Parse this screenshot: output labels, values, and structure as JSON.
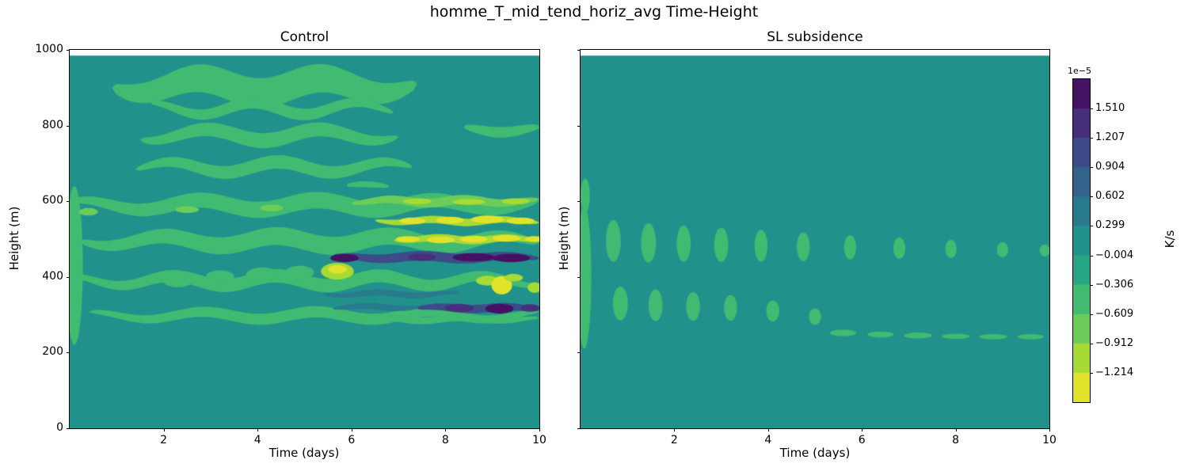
{
  "chart_data": {
    "type": "heatmap",
    "title": "homme_T_mid_tend_horiz_avg Time-Height",
    "colormap": "viridis_r",
    "colormap_colors": [
      "#fde725",
      "#addc30",
      "#5ec962",
      "#28ae80",
      "#21918c",
      "#2c728e",
      "#3b528b",
      "#472d7b",
      "#440154"
    ],
    "value_scale": "1e-5",
    "vmin": -1.517,
    "vmax": 1.813,
    "n_levels": 11,
    "layout": {
      "grid": false,
      "legend": "none",
      "colorbar_position": "right"
    },
    "colorbar": {
      "label": "K/s",
      "offset_text": "1e−5",
      "tick_labels": [
        "1.510",
        "1.207",
        "0.904",
        "0.602",
        "0.299",
        "−0.004",
        "−0.306",
        "−0.609",
        "−0.912",
        "−1.214"
      ]
    },
    "panels": [
      {
        "title": "Control",
        "xlabel": "Time (days)",
        "ylabel": "Height (m)",
        "xlim": [
          0,
          10
        ],
        "ylim": [
          0,
          1000
        ],
        "xticks": [
          "2",
          "4",
          "6",
          "8",
          "10"
        ],
        "yticks": [
          "0",
          "200",
          "400",
          "600",
          "800",
          "1000"
        ],
        "data_top": 985,
        "background_value": 0.05,
        "bands": [
          {
            "y": 905,
            "ry": 40,
            "x0": 0.9,
            "x1": 7.4,
            "amp": 20,
            "wl": 2.6,
            "ph": 1.2,
            "v": -0.45
          },
          {
            "y": 845,
            "ry": 16,
            "x0": 1.7,
            "x1": 6.9,
            "amp": 16,
            "wl": 2.2,
            "ph": 3.0,
            "v": -0.45
          },
          {
            "y": 775,
            "ry": 20,
            "x0": 1.5,
            "x1": 7.0,
            "amp": 15,
            "wl": 2.4,
            "ph": 0.2,
            "v": -0.45
          },
          {
            "y": 790,
            "ry": 14,
            "x0": 8.4,
            "x1": 10.0,
            "amp": 8,
            "wl": 2.0,
            "ph": 1.0,
            "v": -0.45
          },
          {
            "y": 690,
            "ry": 18,
            "x0": 1.4,
            "x1": 7.3,
            "amp": 14,
            "wl": 2.3,
            "ph": 2.0,
            "v": -0.45
          },
          {
            "y": 640,
            "ry": 8,
            "x0": 5.9,
            "x1": 6.8,
            "amp": 5,
            "wl": 2.0,
            "ph": 0.8,
            "v": -0.45
          },
          {
            "y": 590,
            "ry": 22,
            "x0": 0.0,
            "x1": 10.0,
            "amp": 13,
            "wl": 2.5,
            "ph": 0.9,
            "v": -0.45
          },
          {
            "y": 495,
            "ry": 24,
            "x0": 0.2,
            "x1": 10.0,
            "amp": 13,
            "wl": 2.4,
            "ph": 2.6,
            "v": -0.45
          },
          {
            "y": 390,
            "ry": 18,
            "x0": 0.0,
            "x1": 10.0,
            "amp": 13,
            "wl": 2.2,
            "ph": 1.6,
            "v": -0.45
          },
          {
            "y": 298,
            "ry": 15,
            "x0": 0.4,
            "x1": 10.0,
            "amp": 10,
            "wl": 2.4,
            "ph": 0.4,
            "v": -0.45
          },
          {
            "y": 600,
            "ry": 12,
            "x0": 6.0,
            "x1": 10.0,
            "amp": 5,
            "wl": 1.6,
            "ph": 0.0,
            "v": -0.75
          },
          {
            "y": 548,
            "ry": 10,
            "x0": 6.5,
            "x1": 10.0,
            "amp": 4,
            "wl": 1.5,
            "ph": 0.7,
            "v": -0.95
          },
          {
            "y": 500,
            "ry": 10,
            "x0": 6.9,
            "x1": 10.0,
            "amp": 4,
            "wl": 1.5,
            "ph": 0.2,
            "v": -0.95
          },
          {
            "y": 452,
            "ry": 13,
            "x0": 5.6,
            "x1": 10.0,
            "amp": 4,
            "wl": 1.8,
            "ph": 0.5,
            "v": 1.15
          },
          {
            "y": 355,
            "ry": 8,
            "x0": 5.4,
            "x1": 8.3,
            "amp": 4,
            "wl": 1.6,
            "ph": 0.9,
            "v": 0.45
          },
          {
            "y": 320,
            "ry": 8,
            "x0": 5.6,
            "x1": 7.5,
            "amp": 3,
            "wl": 1.5,
            "ph": 0.3,
            "v": 0.6
          },
          {
            "y": 318,
            "ry": 11,
            "x0": 7.4,
            "x1": 10.0,
            "amp": 3,
            "wl": 1.5,
            "ph": 0.3,
            "v": 1.15
          },
          {
            "y": 288,
            "ry": 9,
            "x0": 6.0,
            "x1": 10.0,
            "amp": 4,
            "wl": 1.7,
            "ph": 2.2,
            "v": -0.6
          }
        ],
        "blobs": [
          {
            "x": 0.1,
            "y": 430,
            "rx": 0.18,
            "ry": 210,
            "v": -0.45
          },
          {
            "x": 2.3,
            "y": 395,
            "rx": 0.35,
            "ry": 22,
            "v": -0.6
          },
          {
            "x": 3.2,
            "y": 400,
            "rx": 0.3,
            "ry": 18,
            "v": -0.6
          },
          {
            "x": 4.1,
            "y": 405,
            "rx": 0.35,
            "ry": 20,
            "v": -0.6
          },
          {
            "x": 4.9,
            "y": 412,
            "rx": 0.3,
            "ry": 18,
            "v": -0.6
          },
          {
            "x": 0.4,
            "y": 572,
            "rx": 0.2,
            "ry": 10,
            "v": -0.7
          },
          {
            "x": 2.5,
            "y": 578,
            "rx": 0.25,
            "ry": 9,
            "v": -0.7
          },
          {
            "x": 4.3,
            "y": 582,
            "rx": 0.25,
            "ry": 9,
            "v": -0.7
          },
          {
            "x": 7.4,
            "y": 600,
            "rx": 0.3,
            "ry": 8,
            "v": -1.0
          },
          {
            "x": 8.5,
            "y": 598,
            "rx": 0.35,
            "ry": 8,
            "v": -1.0
          },
          {
            "x": 9.5,
            "y": 600,
            "rx": 0.3,
            "ry": 8,
            "v": -1.0
          },
          {
            "x": 7.3,
            "y": 548,
            "rx": 0.28,
            "ry": 9,
            "v": -1.25
          },
          {
            "x": 8.1,
            "y": 550,
            "rx": 0.3,
            "ry": 9,
            "v": -1.25
          },
          {
            "x": 8.9,
            "y": 552,
            "rx": 0.35,
            "ry": 10,
            "v": -1.3
          },
          {
            "x": 9.6,
            "y": 548,
            "rx": 0.3,
            "ry": 9,
            "v": -1.25
          },
          {
            "x": 7.2,
            "y": 500,
            "rx": 0.25,
            "ry": 8,
            "v": -1.3
          },
          {
            "x": 7.9,
            "y": 498,
            "rx": 0.3,
            "ry": 9,
            "v": -1.3
          },
          {
            "x": 8.6,
            "y": 500,
            "rx": 0.3,
            "ry": 9,
            "v": -1.35
          },
          {
            "x": 9.3,
            "y": 502,
            "rx": 0.3,
            "ry": 9,
            "v": -1.35
          },
          {
            "x": 9.9,
            "y": 500,
            "rx": 0.2,
            "ry": 8,
            "v": -1.3
          },
          {
            "x": 5.85,
            "y": 450,
            "rx": 0.3,
            "ry": 11,
            "v": 1.6
          },
          {
            "x": 7.5,
            "y": 452,
            "rx": 0.3,
            "ry": 10,
            "v": 1.5
          },
          {
            "x": 8.6,
            "y": 452,
            "rx": 0.45,
            "ry": 11,
            "v": 1.65
          },
          {
            "x": 9.4,
            "y": 450,
            "rx": 0.4,
            "ry": 11,
            "v": 1.7
          },
          {
            "x": 5.7,
            "y": 415,
            "rx": 0.35,
            "ry": 22,
            "v": -0.95
          },
          {
            "x": 5.7,
            "y": 420,
            "rx": 0.2,
            "ry": 11,
            "v": -1.25
          },
          {
            "x": 8.9,
            "y": 390,
            "rx": 0.25,
            "ry": 13,
            "v": -1.2
          },
          {
            "x": 9.2,
            "y": 378,
            "rx": 0.22,
            "ry": 24,
            "v": -1.45
          },
          {
            "x": 9.45,
            "y": 398,
            "rx": 0.2,
            "ry": 10,
            "v": -1.2
          },
          {
            "x": 9.9,
            "y": 372,
            "rx": 0.15,
            "ry": 14,
            "v": -1.1
          },
          {
            "x": 8.3,
            "y": 318,
            "rx": 0.3,
            "ry": 11,
            "v": 1.5
          },
          {
            "x": 9.15,
            "y": 316,
            "rx": 0.3,
            "ry": 13,
            "v": 1.8
          },
          {
            "x": 9.8,
            "y": 318,
            "rx": 0.2,
            "ry": 10,
            "v": 1.4
          }
        ]
      },
      {
        "title": "SL subsidence",
        "xlabel": "Time (days)",
        "ylabel": "Height (m)",
        "xlim": [
          0,
          10
        ],
        "ylim": [
          0,
          1000
        ],
        "xticks": [
          "2",
          "4",
          "6",
          "8",
          "10"
        ],
        "yticks": [
          "0",
          "200",
          "400",
          "600",
          "800",
          "1000"
        ],
        "data_top": 985,
        "background_value": 0.05,
        "bands": [],
        "blobs": [
          {
            "x": 0.08,
            "y": 400,
            "rx": 0.15,
            "ry": 190,
            "v": -0.5
          },
          {
            "x": 0.1,
            "y": 615,
            "rx": 0.1,
            "ry": 45,
            "v": -0.5
          },
          {
            "x": 0.7,
            "y": 495,
            "rx": 0.16,
            "ry": 55,
            "v": -0.5
          },
          {
            "x": 1.45,
            "y": 490,
            "rx": 0.16,
            "ry": 52,
            "v": -0.5
          },
          {
            "x": 2.2,
            "y": 488,
            "rx": 0.15,
            "ry": 48,
            "v": -0.5
          },
          {
            "x": 3.0,
            "y": 485,
            "rx": 0.15,
            "ry": 45,
            "v": -0.5
          },
          {
            "x": 3.85,
            "y": 482,
            "rx": 0.14,
            "ry": 42,
            "v": -0.5
          },
          {
            "x": 4.75,
            "y": 480,
            "rx": 0.14,
            "ry": 38,
            "v": -0.5
          },
          {
            "x": 5.75,
            "y": 478,
            "rx": 0.13,
            "ry": 32,
            "v": -0.5
          },
          {
            "x": 6.8,
            "y": 476,
            "rx": 0.13,
            "ry": 28,
            "v": -0.5
          },
          {
            "x": 7.9,
            "y": 474,
            "rx": 0.12,
            "ry": 24,
            "v": -0.5
          },
          {
            "x": 9.0,
            "y": 472,
            "rx": 0.12,
            "ry": 20,
            "v": -0.5
          },
          {
            "x": 9.9,
            "y": 470,
            "rx": 0.11,
            "ry": 16,
            "v": -0.5
          },
          {
            "x": 0.85,
            "y": 330,
            "rx": 0.16,
            "ry": 45,
            "v": -0.5
          },
          {
            "x": 1.6,
            "y": 325,
            "rx": 0.15,
            "ry": 42,
            "v": -0.5
          },
          {
            "x": 2.4,
            "y": 322,
            "rx": 0.15,
            "ry": 38,
            "v": -0.5
          },
          {
            "x": 3.2,
            "y": 318,
            "rx": 0.14,
            "ry": 34,
            "v": -0.5
          },
          {
            "x": 4.1,
            "y": 310,
            "rx": 0.14,
            "ry": 28,
            "v": -0.5
          },
          {
            "x": 5.0,
            "y": 295,
            "rx": 0.13,
            "ry": 22,
            "v": -0.5
          },
          {
            "x": 5.6,
            "y": 252,
            "rx": 0.28,
            "ry": 9,
            "v": -0.42
          },
          {
            "x": 6.4,
            "y": 248,
            "rx": 0.28,
            "ry": 8,
            "v": -0.42
          },
          {
            "x": 7.2,
            "y": 245,
            "rx": 0.3,
            "ry": 8,
            "v": -0.42
          },
          {
            "x": 8.0,
            "y": 243,
            "rx": 0.3,
            "ry": 7,
            "v": -0.42
          },
          {
            "x": 8.8,
            "y": 242,
            "rx": 0.3,
            "ry": 7,
            "v": -0.42
          },
          {
            "x": 9.6,
            "y": 242,
            "rx": 0.28,
            "ry": 7,
            "v": -0.42
          }
        ]
      }
    ]
  }
}
